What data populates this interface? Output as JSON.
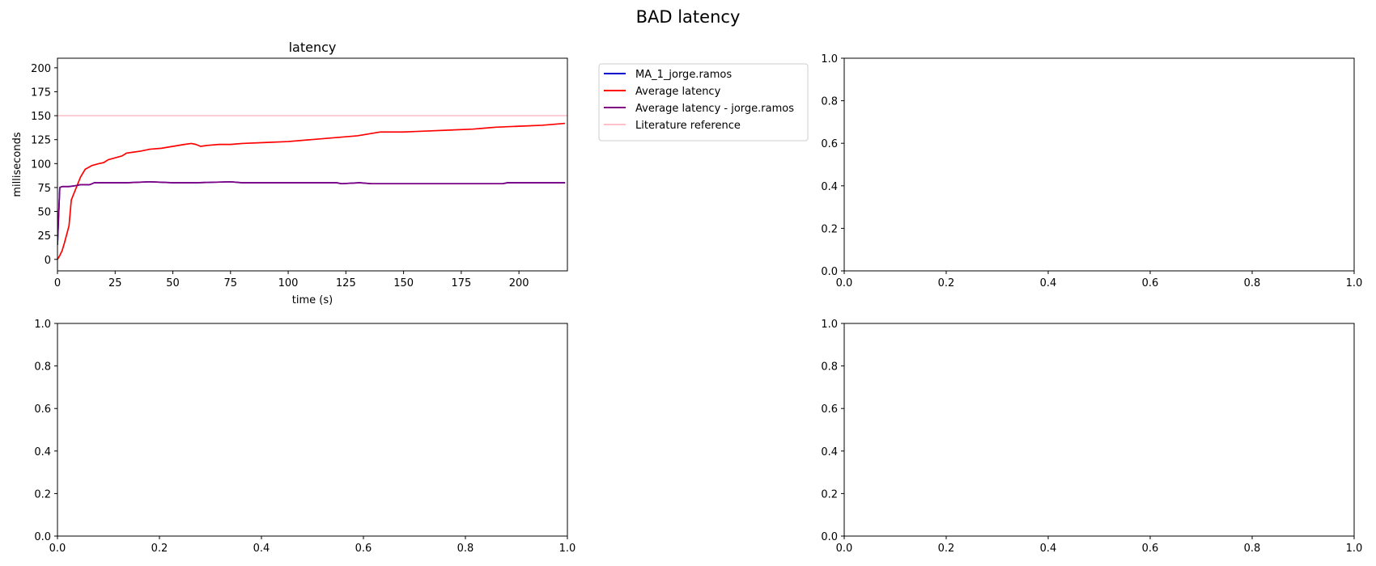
{
  "figure": {
    "suptitle": "BAD latency"
  },
  "chart_data": [
    {
      "type": "line",
      "panel": "top-left",
      "title": "latency",
      "xlabel": "time (s)",
      "ylabel": "milliseconds",
      "xlim": [
        0,
        221
      ],
      "ylim": [
        -12,
        210
      ],
      "xticks": [
        0,
        25,
        50,
        75,
        100,
        125,
        150,
        175,
        200
      ],
      "yticks": [
        0,
        25,
        50,
        75,
        100,
        125,
        150,
        175,
        200
      ],
      "grid": false,
      "legend_placement": "outside-right",
      "series": [
        {
          "name": "MA_1_jorge.ramos",
          "color": "#0000cc",
          "x": [
            0,
            1,
            2,
            5,
            8,
            10,
            14,
            16,
            20,
            30,
            40,
            50,
            60,
            75,
            80,
            100,
            121,
            123,
            131,
            136,
            140,
            160,
            180,
            193,
            195,
            220
          ],
          "y": [
            15,
            75,
            76,
            76,
            77,
            78,
            78,
            80,
            80,
            80,
            81,
            80,
            80,
            81,
            80,
            80,
            80,
            79,
            80,
            79,
            79,
            79,
            79,
            79,
            80,
            80
          ]
        },
        {
          "name": "Average latency",
          "color": "#ff0000",
          "x": [
            0,
            1,
            2,
            3,
            4,
            5,
            6,
            8,
            10,
            12,
            15,
            18,
            20,
            22,
            25,
            28,
            30,
            33,
            36,
            40,
            45,
            50,
            55,
            58,
            60,
            62,
            65,
            70,
            75,
            80,
            90,
            100,
            110,
            120,
            130,
            135,
            140,
            150,
            160,
            170,
            180,
            185,
            190,
            200,
            210,
            220
          ],
          "y": [
            0,
            4,
            9,
            17,
            26,
            35,
            62,
            74,
            86,
            94,
            98,
            100,
            101,
            104,
            106,
            108,
            111,
            112,
            113,
            115,
            116,
            118,
            120,
            121,
            120,
            118,
            119,
            120,
            120,
            121,
            122,
            123,
            125,
            127,
            129,
            131,
            133,
            133,
            134,
            135,
            136,
            137,
            138,
            139,
            140,
            142
          ]
        },
        {
          "name": "Average latency - jorge.ramos",
          "color": "#800080",
          "x": [
            0,
            1,
            2,
            5,
            8,
            10,
            14,
            16,
            20,
            30,
            40,
            50,
            60,
            75,
            80,
            100,
            121,
            123,
            131,
            136,
            140,
            160,
            180,
            193,
            195,
            220
          ],
          "y": [
            15,
            75,
            76,
            76,
            77,
            78,
            78,
            80,
            80,
            80,
            81,
            80,
            80,
            81,
            80,
            80,
            80,
            79,
            80,
            79,
            79,
            79,
            79,
            79,
            80,
            80
          ]
        },
        {
          "name": "Literature reference",
          "color": "#ffc0cb",
          "x": [
            0,
            221
          ],
          "y": [
            150,
            150
          ]
        }
      ]
    },
    {
      "type": "line",
      "panel": "top-right",
      "title": "",
      "xlim": [
        0,
        1
      ],
      "ylim": [
        0,
        1
      ],
      "xticks": [
        "0.0",
        "0.2",
        "0.4",
        "0.6",
        "0.8",
        "1.0"
      ],
      "yticks": [
        "0.0",
        "0.2",
        "0.4",
        "0.6",
        "0.8",
        "1.0"
      ],
      "series": []
    },
    {
      "type": "line",
      "panel": "bottom-left",
      "title": "",
      "xlim": [
        0,
        1
      ],
      "ylim": [
        0,
        1
      ],
      "xticks": [
        "0.0",
        "0.2",
        "0.4",
        "0.6",
        "0.8",
        "1.0"
      ],
      "yticks": [
        "0.0",
        "0.2",
        "0.4",
        "0.6",
        "0.8",
        "1.0"
      ],
      "series": []
    },
    {
      "type": "line",
      "panel": "bottom-right",
      "title": "",
      "xlim": [
        0,
        1
      ],
      "ylim": [
        0,
        1
      ],
      "xticks": [
        "0.0",
        "0.2",
        "0.4",
        "0.6",
        "0.8",
        "1.0"
      ],
      "yticks": [
        "0.0",
        "0.2",
        "0.4",
        "0.6",
        "0.8",
        "1.0"
      ],
      "series": []
    }
  ]
}
